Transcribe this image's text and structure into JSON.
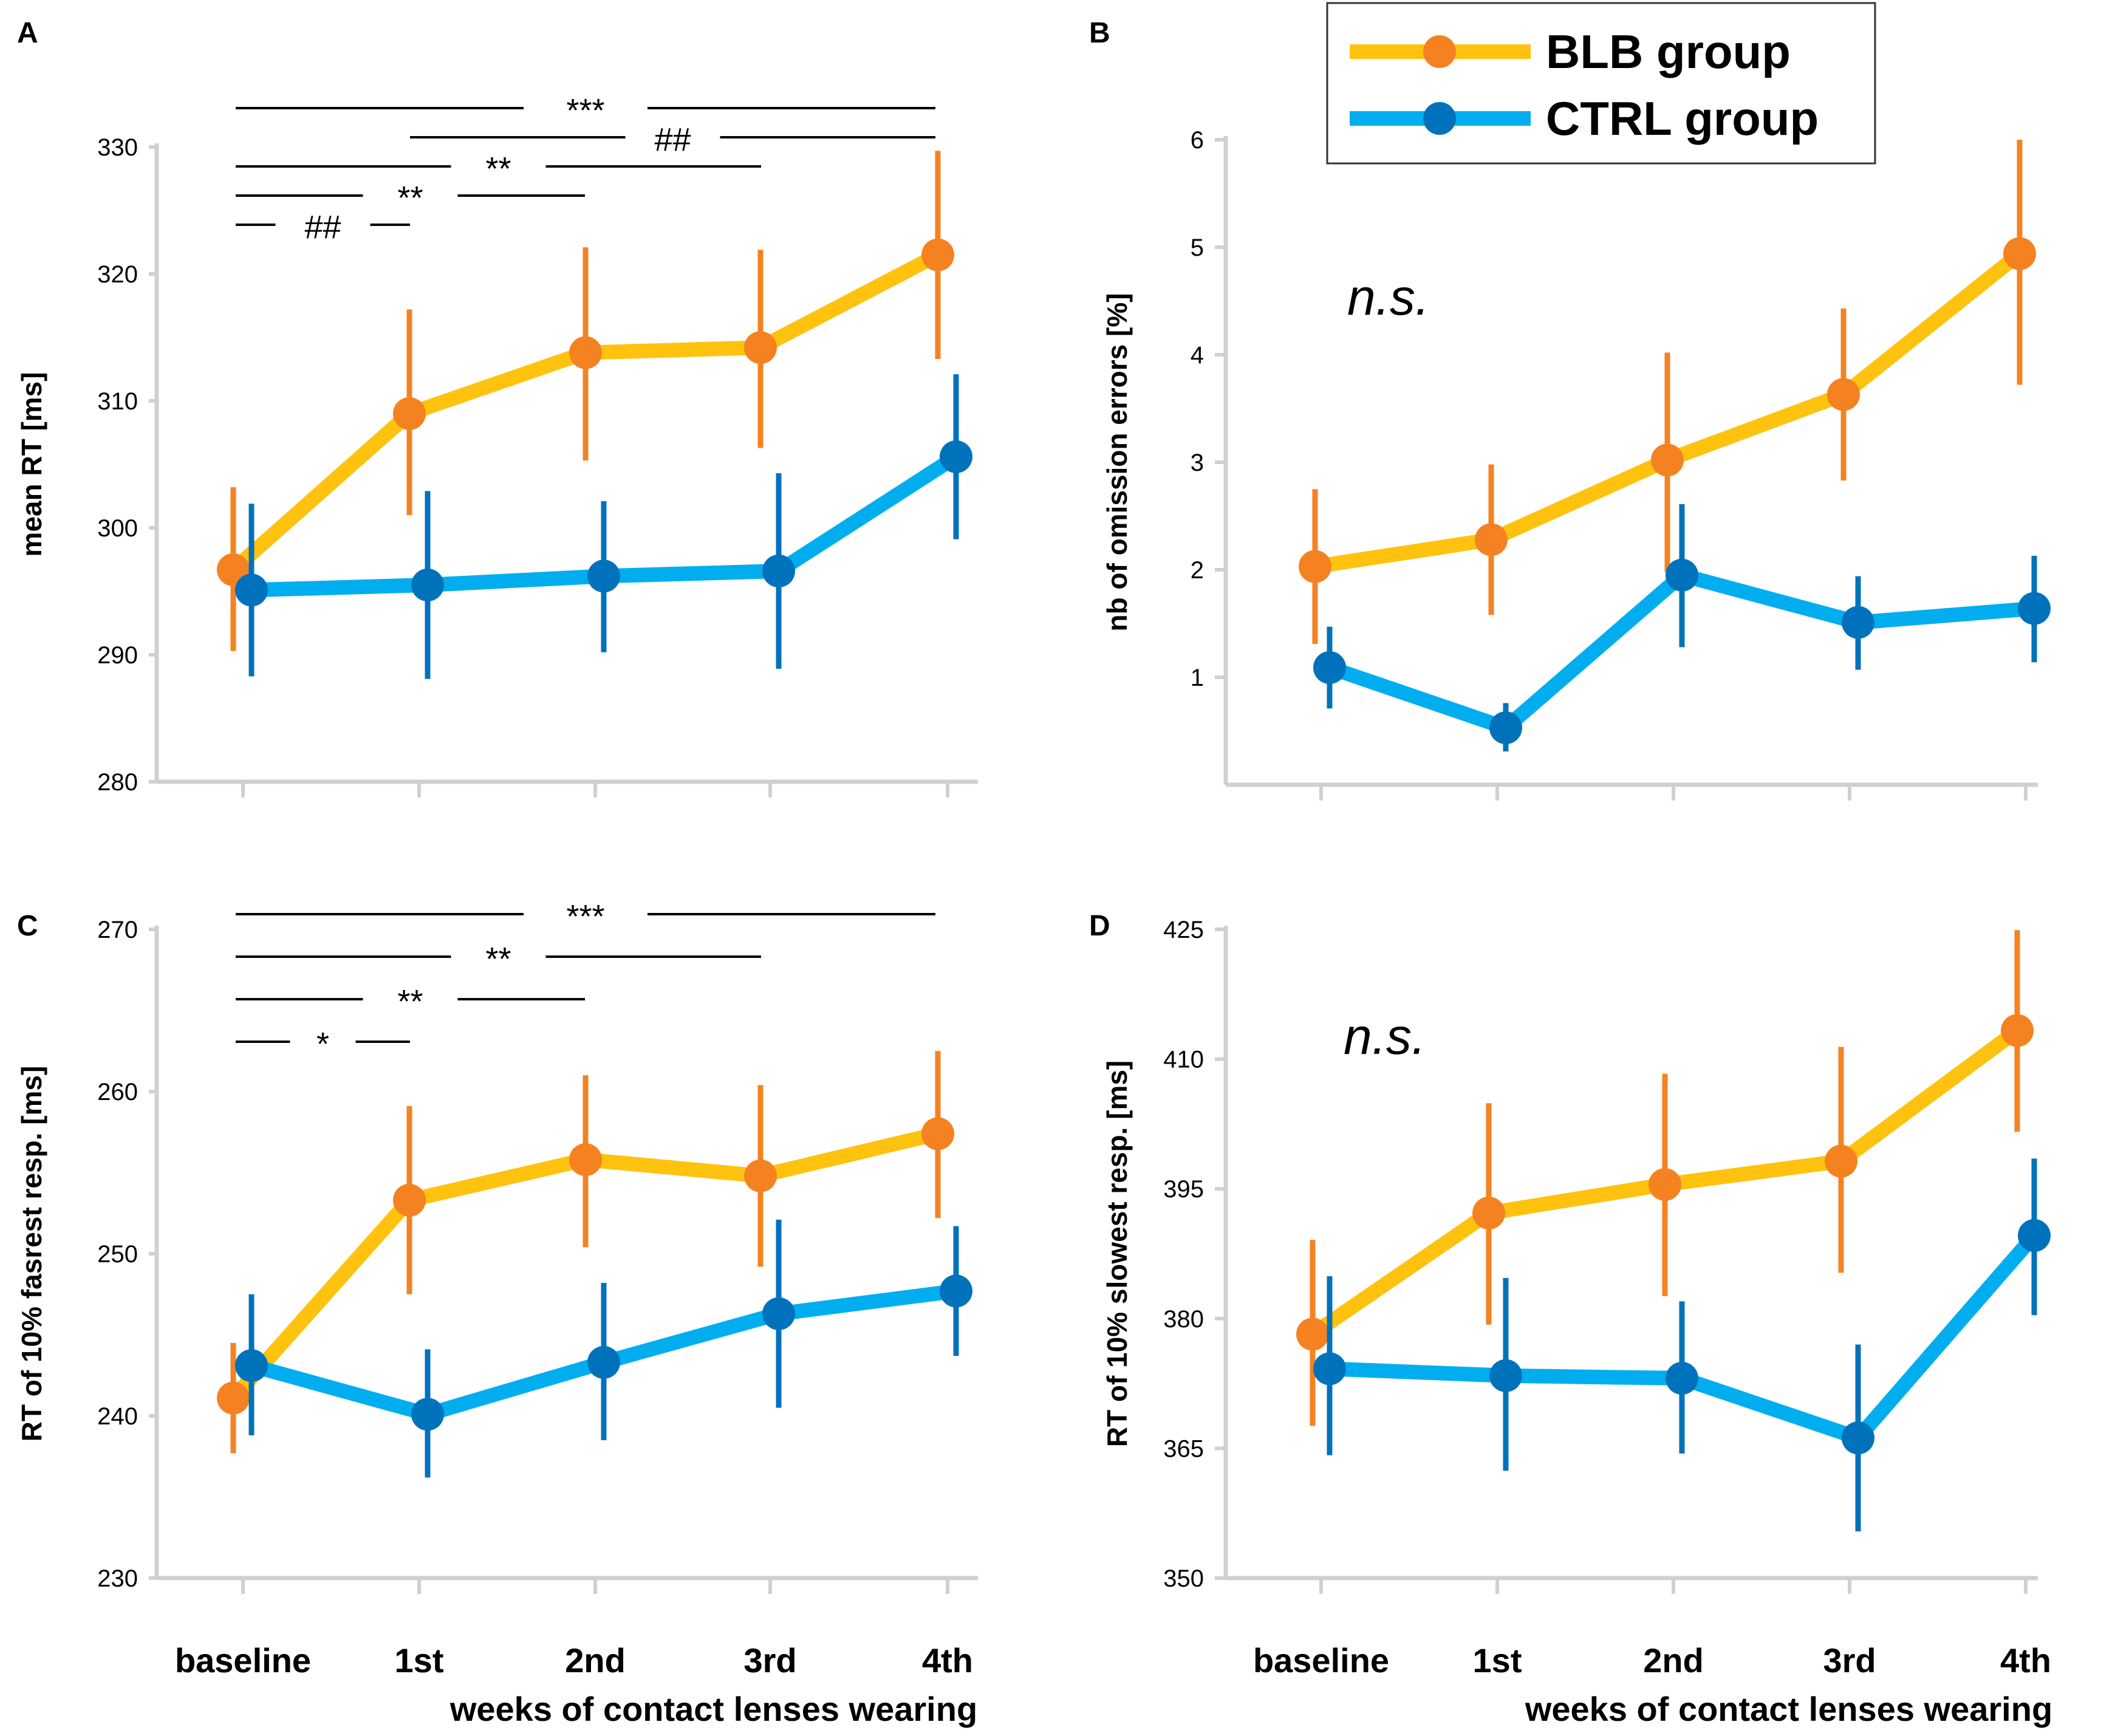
{
  "legend": {
    "entries": [
      {
        "label": "BLB group",
        "line_color": "#FFC20E",
        "marker_color": "#F58220"
      },
      {
        "label": "CTRL group",
        "line_color": "#00AEEF",
        "marker_color": "#0072BC"
      }
    ]
  },
  "colors": {
    "blb_line": "#FFC20E",
    "blb_marker": "#F58220",
    "ctrl_line": "#00AEEF",
    "ctrl_marker": "#0072BC",
    "axis": "#d0d0d0"
  },
  "chart_data": [
    {
      "type": "line",
      "panel": "A",
      "ylabel": "mean RT [ms]",
      "xlabel": "",
      "categories": [
        "baseline",
        "1st",
        "2nd",
        "3rd",
        "4th"
      ],
      "ylim": [
        280,
        330
      ],
      "yticks": [
        "280",
        "290",
        "300",
        "310",
        "320",
        "330"
      ],
      "ytick_values": [
        280,
        290,
        300,
        310,
        320,
        330
      ],
      "series": [
        {
          "name": "BLB group",
          "values": [
            296.7,
            309.0,
            313.8,
            314.2,
            321.5
          ],
          "err_low": [
            290.3,
            301.0,
            305.3,
            306.3,
            313.3
          ],
          "err_high": [
            303.2,
            317.2,
            322.1,
            321.9,
            329.7
          ]
        },
        {
          "name": "CTRL group",
          "values": [
            295.1,
            295.5,
            296.2,
            296.6,
            305.6
          ],
          "err_low": [
            288.3,
            288.1,
            290.2,
            288.9,
            299.1
          ],
          "err_high": [
            301.9,
            302.9,
            302.1,
            304.3,
            312.1
          ]
        }
      ],
      "significance": [
        {
          "label": "***",
          "from": 0,
          "to": 4,
          "level": 0
        },
        {
          "label": "##",
          "from": 1,
          "to": 4,
          "level": 1
        },
        {
          "label": "**",
          "from": 0,
          "to": 3,
          "level": 2
        },
        {
          "label": "**",
          "from": 0,
          "to": 2,
          "level": 3
        },
        {
          "label": "##",
          "from": 0,
          "to": 1,
          "level": 4
        }
      ],
      "annotation": ""
    },
    {
      "type": "line",
      "panel": "B",
      "ylabel": "nb of omission errors [%]",
      "xlabel": "",
      "categories": [
        "",
        "",
        "",
        "",
        ""
      ],
      "ylim": [
        0,
        6
      ],
      "yticks": [
        "1",
        "2",
        "3",
        "4",
        "5",
        "6"
      ],
      "ytick_values": [
        1,
        2,
        3,
        4,
        5,
        6
      ],
      "series": [
        {
          "name": "BLB group",
          "values": [
            2.03,
            2.28,
            3.02,
            3.63,
            4.94
          ],
          "err_low": [
            1.31,
            1.58,
            1.98,
            2.83,
            3.72
          ],
          "err_high": [
            2.75,
            2.98,
            4.02,
            4.43,
            6.0
          ]
        },
        {
          "name": "CTRL group",
          "values": [
            1.09,
            0.53,
            1.95,
            1.51,
            1.64
          ],
          "err_low": [
            0.71,
            0.31,
            1.28,
            1.07,
            1.14
          ],
          "err_high": [
            1.47,
            0.76,
            2.61,
            1.94,
            2.13
          ]
        }
      ],
      "significance": [],
      "annotation": "n.s."
    },
    {
      "type": "line",
      "panel": "C",
      "ylabel": "RT of 10% fasrest resp. [ms]",
      "xlabel": "weeks of contact lenses wearing",
      "categories": [
        "baseline",
        "1st",
        "2nd",
        "3rd",
        "4th"
      ],
      "ylim": [
        230,
        270
      ],
      "yticks": [
        "230",
        "240",
        "250",
        "260",
        "270"
      ],
      "ytick_values": [
        230,
        240,
        250,
        260,
        270
      ],
      "series": [
        {
          "name": "BLB group",
          "values": [
            241.1,
            253.3,
            255.8,
            254.8,
            257.4
          ],
          "err_low": [
            237.7,
            247.5,
            250.4,
            249.2,
            252.2
          ],
          "err_high": [
            244.5,
            259.1,
            261.0,
            260.4,
            262.5
          ]
        },
        {
          "name": "CTRL group",
          "values": [
            243.1,
            240.1,
            243.3,
            246.3,
            247.7
          ],
          "err_low": [
            238.8,
            236.2,
            238.5,
            240.5,
            243.7
          ],
          "err_high": [
            247.5,
            244.1,
            248.2,
            252.1,
            251.7
          ]
        }
      ],
      "significance": [
        {
          "label": "***",
          "from": 0,
          "to": 4,
          "level": 0
        },
        {
          "label": "**",
          "from": 0,
          "to": 3,
          "level": 1
        },
        {
          "label": "**",
          "from": 0,
          "to": 2,
          "level": 2
        },
        {
          "label": "*",
          "from": 0,
          "to": 1,
          "level": 3
        }
      ],
      "annotation": ""
    },
    {
      "type": "line",
      "panel": "D",
      "ylabel": "RT of 10% slowest resp. [ms]",
      "xlabel": "weeks of contact lenses wearing",
      "categories": [
        "baseline",
        "1st",
        "2nd",
        "3rd",
        "4th"
      ],
      "ylim": [
        350,
        425
      ],
      "yticks": [
        "350",
        "365",
        "380",
        "395",
        "410",
        "425"
      ],
      "ytick_values": [
        350,
        365,
        380,
        395,
        410,
        425
      ],
      "series": [
        {
          "name": "BLB group",
          "values": [
            378.2,
            392.2,
            395.5,
            398.2,
            413.3
          ],
          "err_low": [
            367.6,
            379.3,
            382.6,
            385.3,
            401.6
          ],
          "err_high": [
            389.1,
            404.9,
            408.3,
            411.4,
            424.9
          ]
        },
        {
          "name": "CTRL group",
          "values": [
            374.2,
            373.4,
            373.1,
            366.2,
            389.6
          ],
          "err_low": [
            364.2,
            362.4,
            364.4,
            355.4,
            380.4
          ],
          "err_high": [
            384.9,
            384.7,
            382.0,
            377.0,
            398.5
          ]
        }
      ],
      "significance": [],
      "annotation": "n.s."
    }
  ]
}
